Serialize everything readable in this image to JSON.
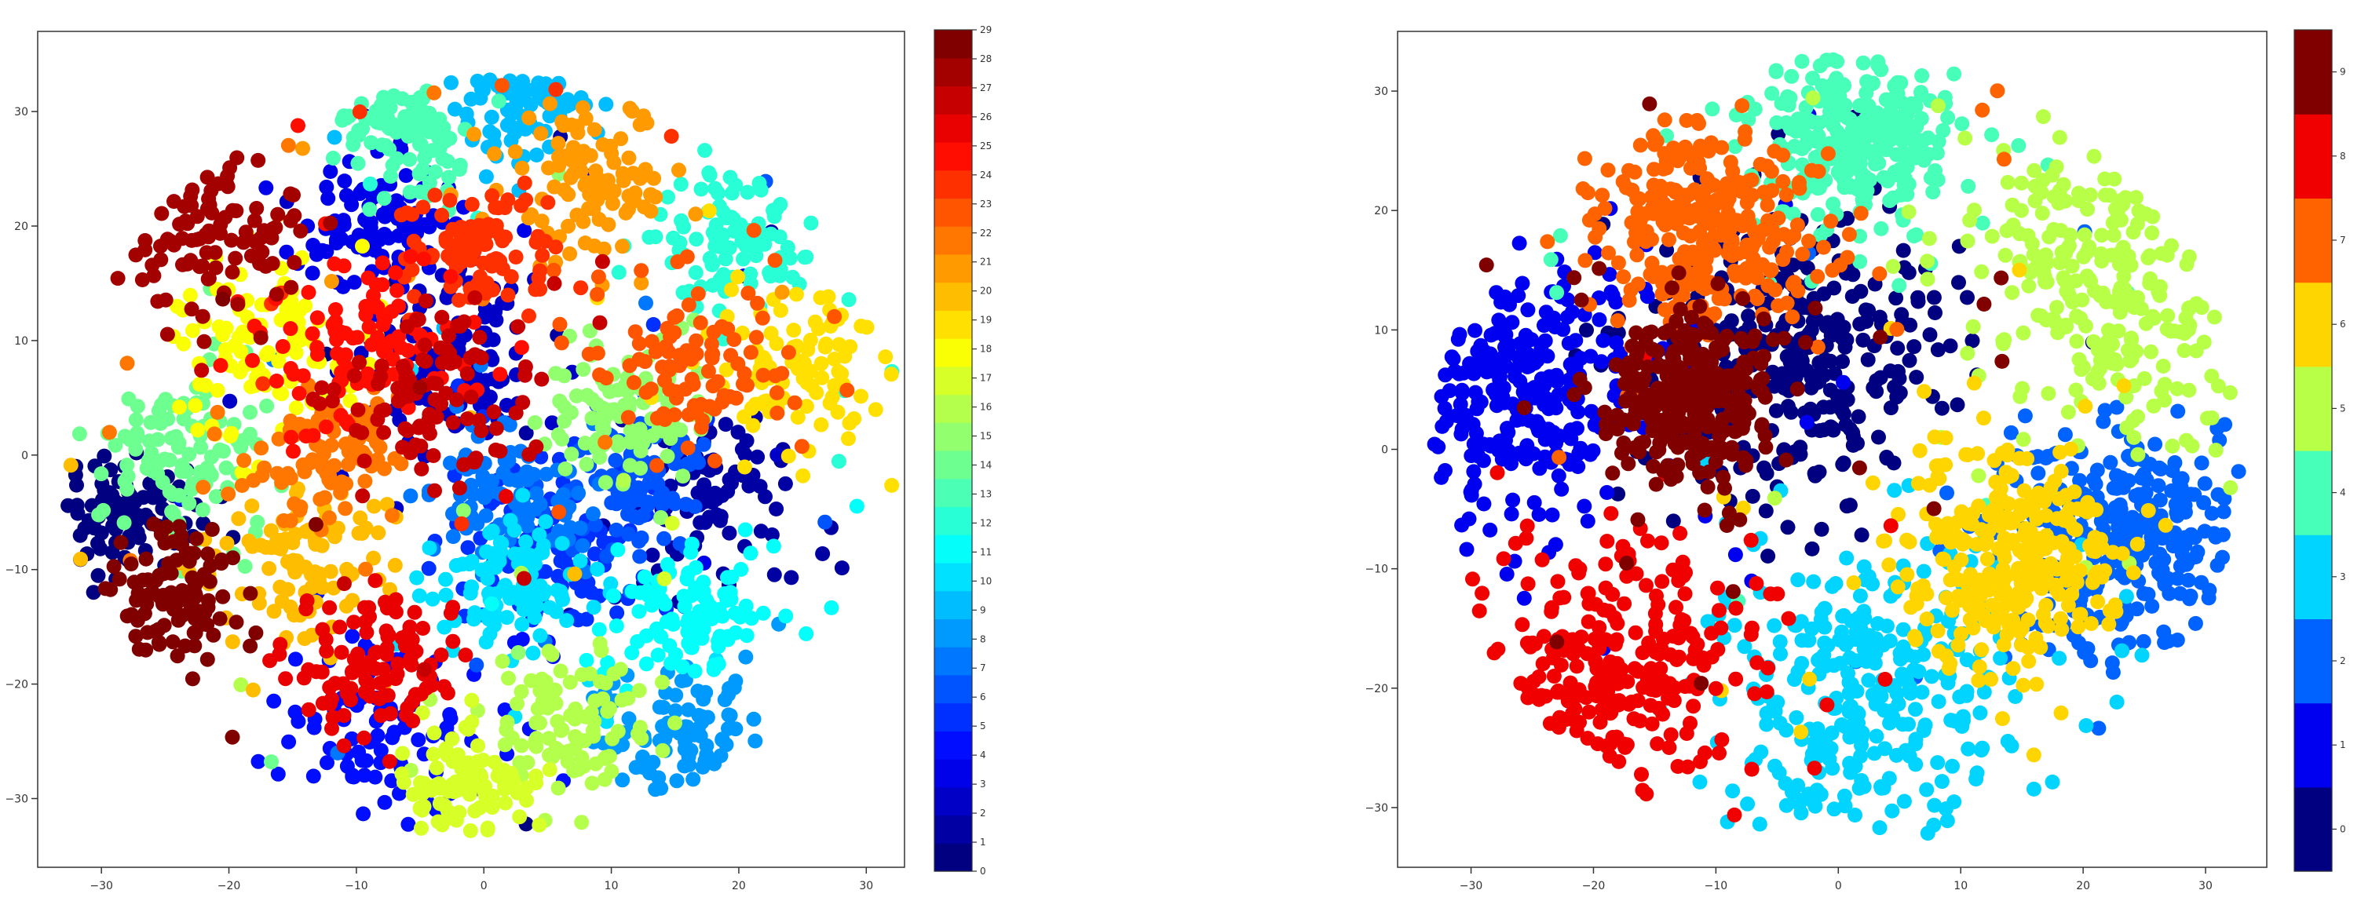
{
  "chart_data": [
    {
      "type": "scatter",
      "title": "",
      "xlabel": "",
      "ylabel": "",
      "xlim": [
        -35,
        33
      ],
      "ylim": [
        -36,
        37
      ],
      "xticks": [
        -30,
        -20,
        -10,
        0,
        10,
        20,
        30
      ],
      "yticks": [
        -30,
        -20,
        -10,
        0,
        10,
        20,
        30
      ],
      "grid": false,
      "colorbar": {
        "min": 0,
        "max": 29,
        "ticks": [
          0,
          1,
          2,
          3,
          4,
          5,
          6,
          7,
          8,
          9,
          10,
          11,
          12,
          13,
          14,
          15,
          16,
          17,
          18,
          19,
          20,
          21,
          22,
          23,
          24,
          25,
          26,
          27,
          28,
          29
        ],
        "colormap": "jet"
      },
      "clusters": [
        {
          "label": 0,
          "center": [
            -28,
            -5
          ],
          "spread": 3.0
        },
        {
          "label": 1,
          "center": [
            18,
            -3
          ],
          "spread": 3.5
        },
        {
          "label": 2,
          "center": [
            -2,
            8
          ],
          "spread": 3.5
        },
        {
          "label": 3,
          "center": [
            -8,
            20
          ],
          "spread": 3.2
        },
        {
          "label": 4,
          "center": [
            -7,
            -24
          ],
          "spread": 4.0
        },
        {
          "label": 5,
          "center": [
            5,
            -8
          ],
          "spread": 4.0
        },
        {
          "label": 6,
          "center": [
            12,
            -2
          ],
          "spread": 3.0
        },
        {
          "label": 7,
          "center": [
            2,
            -3
          ],
          "spread": 3.5
        },
        {
          "label": 8,
          "center": [
            16,
            -24
          ],
          "spread": 3.2
        },
        {
          "label": 9,
          "center": [
            3,
            31
          ],
          "spread": 2.5
        },
        {
          "label": 10,
          "center": [
            2,
            -11
          ],
          "spread": 3.0
        },
        {
          "label": 11,
          "center": [
            16,
            -14
          ],
          "spread": 3.0
        },
        {
          "label": 12,
          "center": [
            20,
            19
          ],
          "spread": 3.0
        },
        {
          "label": 13,
          "center": [
            -6,
            28
          ],
          "spread": 2.5
        },
        {
          "label": 14,
          "center": [
            -24,
            0
          ],
          "spread": 3.5
        },
        {
          "label": 15,
          "center": [
            11,
            4
          ],
          "spread": 3.0
        },
        {
          "label": 16,
          "center": [
            7,
            -23
          ],
          "spread": 3.5
        },
        {
          "label": 17,
          "center": [
            -2,
            -29
          ],
          "spread": 2.5
        },
        {
          "label": 18,
          "center": [
            -17,
            10
          ],
          "spread": 4.0
        },
        {
          "label": 19,
          "center": [
            24,
            8
          ],
          "spread": 3.5
        },
        {
          "label": 20,
          "center": [
            -14,
            -10
          ],
          "spread": 3.5
        },
        {
          "label": 21,
          "center": [
            8,
            24
          ],
          "spread": 3.5
        },
        {
          "label": 22,
          "center": [
            -12,
            0
          ],
          "spread": 3.0
        },
        {
          "label": 23,
          "center": [
            17,
            8
          ],
          "spread": 3.5
        },
        {
          "label": 24,
          "center": [
            0,
            18
          ],
          "spread": 3.0
        },
        {
          "label": 25,
          "center": [
            -10,
            10
          ],
          "spread": 3.5
        },
        {
          "label": 26,
          "center": [
            -8,
            -18
          ],
          "spread": 3.0
        },
        {
          "label": 27,
          "center": [
            -4,
            5
          ],
          "spread": 3.5
        },
        {
          "label": 28,
          "center": [
            -21,
            19
          ],
          "spread": 3.5
        },
        {
          "label": 29,
          "center": [
            -24,
            -12
          ],
          "spread": 3.0
        }
      ]
    },
    {
      "type": "scatter",
      "title": "",
      "xlabel": "",
      "ylabel": "",
      "xlim": [
        -36,
        35
      ],
      "ylim": [
        -35,
        35
      ],
      "xticks": [
        -30,
        -20,
        -10,
        0,
        10,
        20,
        30
      ],
      "yticks": [
        -30,
        -20,
        -10,
        0,
        10,
        20,
        30
      ],
      "grid": false,
      "colorbar": {
        "min": 0,
        "max": 9,
        "ticks": [
          0,
          1,
          2,
          3,
          4,
          5,
          6,
          7,
          8,
          9
        ],
        "colormap": "jet"
      },
      "clusters": [
        {
          "label": 0,
          "center": [
            -3,
            8
          ],
          "spread": 6.0
        },
        {
          "label": 1,
          "center": [
            -26,
            5
          ],
          "spread": 5.5
        },
        {
          "label": 2,
          "center": [
            24,
            -8
          ],
          "spread": 5.0
        },
        {
          "label": 3,
          "center": [
            2,
            -20
          ],
          "spread": 6.0
        },
        {
          "label": 4,
          "center": [
            2,
            26
          ],
          "spread": 4.0
        },
        {
          "label": 5,
          "center": [
            23,
            14
          ],
          "spread": 6.0
        },
        {
          "label": 6,
          "center": [
            14,
            -9
          ],
          "spread": 4.5
        },
        {
          "label": 7,
          "center": [
            -11,
            19
          ],
          "spread": 4.5
        },
        {
          "label": 8,
          "center": [
            -19,
            -19
          ],
          "spread": 6.0
        },
        {
          "label": 9,
          "center": [
            -12,
            4
          ],
          "spread": 3.5
        }
      ]
    }
  ]
}
